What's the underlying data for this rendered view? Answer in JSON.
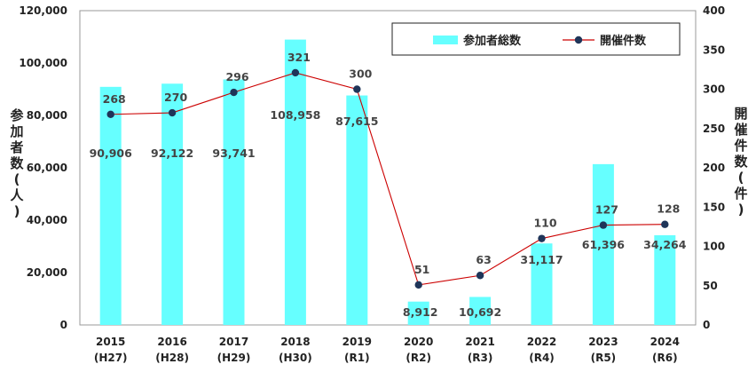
{
  "chart_data": {
    "type": "bar",
    "categories": [
      "2015",
      "2016",
      "2017",
      "2018",
      "2019",
      "2020",
      "2021",
      "2022",
      "2023",
      "2024"
    ],
    "categories_sub": [
      "(H27)",
      "(H28)",
      "(H29)",
      "(H30)",
      "(R1)",
      "(R2)",
      "(R3)",
      "(R4)",
      "(R5)",
      "(R6)"
    ],
    "series": [
      {
        "name": "参加者総数",
        "type": "bar",
        "axis": "left",
        "color": "#66ffff",
        "values": [
          90906,
          92122,
          93741,
          108958,
          87615,
          8912,
          10692,
          31117,
          61396,
          34264
        ],
        "labels": [
          "90,906",
          "92,122",
          "93,741",
          "108,958",
          "87,615",
          "8,912",
          "10,692",
          "31,117",
          "61,396",
          "34,264"
        ]
      },
      {
        "name": "開催件数",
        "type": "line",
        "axis": "right",
        "color": "#cc0000",
        "marker_color": "#1f3559",
        "values": [
          268,
          270,
          296,
          321,
          300,
          51,
          63,
          110,
          127,
          128
        ],
        "labels": [
          "268",
          "270",
          "296",
          "321",
          "300",
          "51",
          "63",
          "110",
          "127",
          "128"
        ]
      }
    ],
    "ylabel": "参加者数(人)",
    "y2label": "開催件数(件)",
    "ylim": [
      0,
      120000
    ],
    "y2lim": [
      0,
      400
    ],
    "yticks": [
      "0",
      "20,000",
      "40,000",
      "60,000",
      "80,000",
      "100,000",
      "120,000"
    ],
    "y2ticks": [
      "0",
      "50",
      "100",
      "150",
      "200",
      "250",
      "300",
      "350",
      "400"
    ],
    "legend": "top-right",
    "grid": false
  }
}
